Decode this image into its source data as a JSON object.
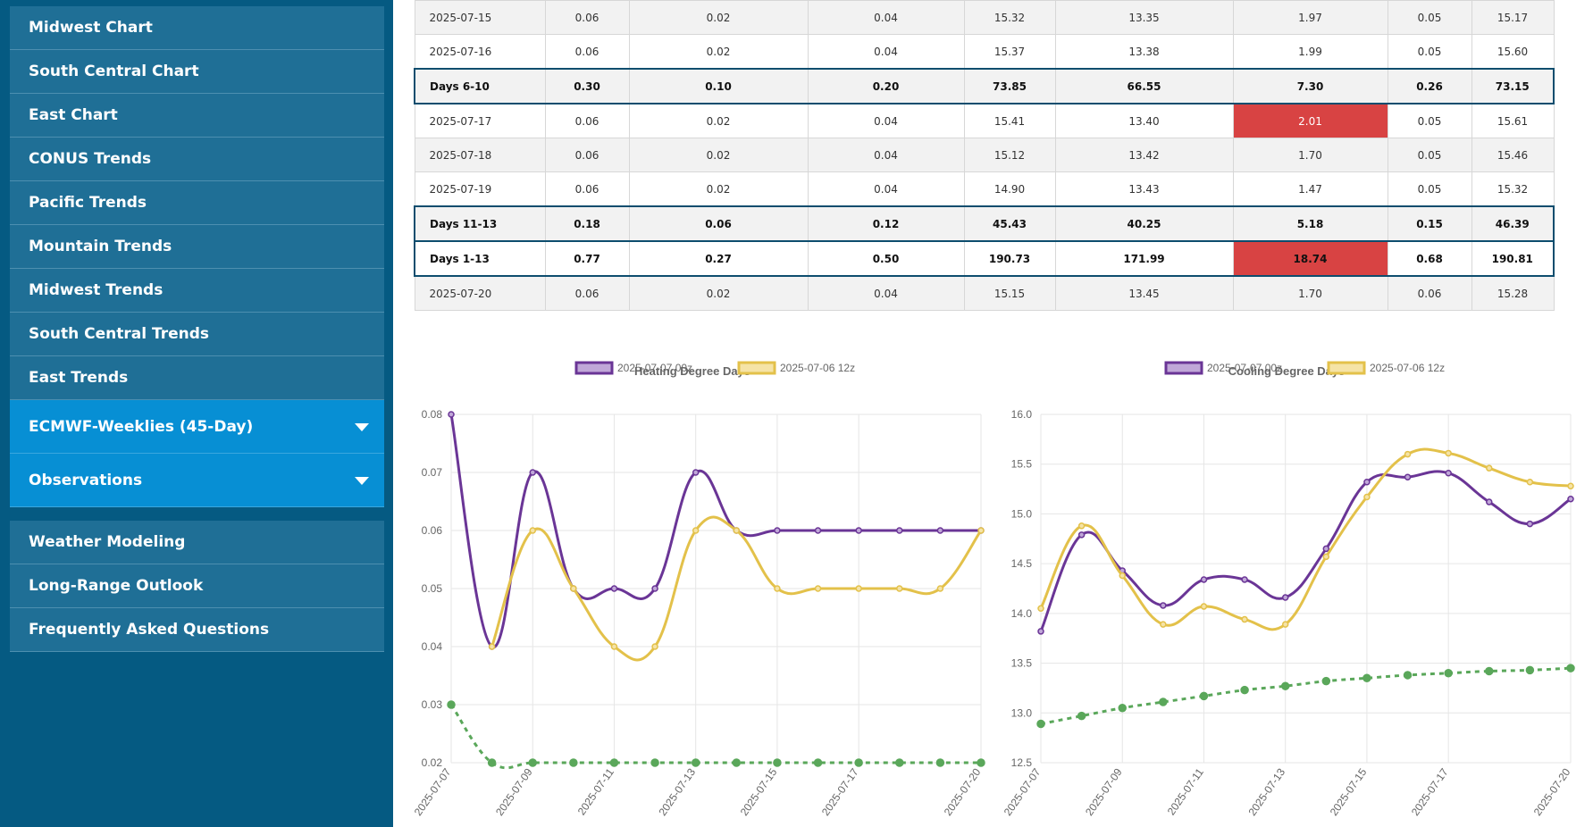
{
  "sidebar": {
    "group1": [
      {
        "label": "Midwest Chart"
      },
      {
        "label": "South Central Chart"
      },
      {
        "label": "East Chart"
      },
      {
        "label": "CONUS Trends"
      },
      {
        "label": "Pacific Trends"
      },
      {
        "label": "Mountain Trends"
      },
      {
        "label": "Midwest Trends"
      },
      {
        "label": "South Central Trends"
      },
      {
        "label": "East Trends"
      },
      {
        "label": "ECMWF-Weeklies (45-Day)"
      },
      {
        "label": "Observations"
      }
    ],
    "group2": [
      {
        "label": "Weather Modeling"
      },
      {
        "label": "Long-Range Outlook"
      },
      {
        "label": "Frequently Asked Questions"
      }
    ]
  },
  "table": {
    "rows": [
      {
        "kind": "day",
        "cells": [
          "2025-07-15",
          "0.06",
          "0.02",
          "0.04",
          "15.32",
          "13.35",
          "1.97",
          "0.05",
          "15.17"
        ]
      },
      {
        "kind": "day",
        "cells": [
          "2025-07-16",
          "0.06",
          "0.02",
          "0.04",
          "15.37",
          "13.38",
          "1.99",
          "0.05",
          "15.60"
        ]
      },
      {
        "kind": "sum",
        "cells": [
          "Days 6-10",
          "0.30",
          "0.10",
          "0.20",
          "73.85",
          "66.55",
          "7.30",
          "0.26",
          "73.15"
        ]
      },
      {
        "kind": "day",
        "cells": [
          "2025-07-17",
          "0.06",
          "0.02",
          "0.04",
          "15.41",
          "13.40",
          "2.01",
          "0.05",
          "15.61"
        ]
      },
      {
        "kind": "day",
        "cells": [
          "2025-07-18",
          "0.06",
          "0.02",
          "0.04",
          "15.12",
          "13.42",
          "1.70",
          "0.05",
          "15.46"
        ]
      },
      {
        "kind": "day",
        "cells": [
          "2025-07-19",
          "0.06",
          "0.02",
          "0.04",
          "14.90",
          "13.43",
          "1.47",
          "0.05",
          "15.32"
        ]
      },
      {
        "kind": "sum",
        "cells": [
          "Days 11-13",
          "0.18",
          "0.06",
          "0.12",
          "45.43",
          "40.25",
          "5.18",
          "0.15",
          "46.39"
        ]
      },
      {
        "kind": "sum",
        "cells": [
          "Days 1-13",
          "0.77",
          "0.27",
          "0.50",
          "190.73",
          "171.99",
          "18.74",
          "0.68",
          "190.81"
        ]
      },
      {
        "kind": "day",
        "cells": [
          "2025-07-20",
          "0.06",
          "0.02",
          "0.04",
          "15.15",
          "13.45",
          "1.70",
          "0.06",
          "15.28"
        ]
      }
    ],
    "highlight_color": "#d84343"
  },
  "chart_data": [
    {
      "type": "line",
      "title": "Heating Degree Days",
      "x": [
        "2025-07-07",
        "2025-07-08",
        "2025-07-09",
        "2025-07-10",
        "2025-07-11",
        "2025-07-12",
        "2025-07-13",
        "2025-07-14",
        "2025-07-15",
        "2025-07-16",
        "2025-07-17",
        "2025-07-18",
        "2025-07-19",
        "2025-07-20"
      ],
      "x_tick_labels": [
        "2025-07-07",
        "2025-07-09",
        "2025-07-11",
        "2025-07-13",
        "2025-07-15",
        "2025-07-17",
        "2025-07-20"
      ],
      "ylim": [
        0.02,
        0.08
      ],
      "y_ticks": [
        "0.08",
        "0.07",
        "0.06",
        "0.05",
        "0.04",
        "0.03",
        "0.02"
      ],
      "grid": true,
      "legend_position": "top",
      "series": [
        {
          "name": "2025-07-07 00z",
          "color": "#6a3596",
          "fill": "#c0a7d8",
          "style": "solid",
          "values": [
            0.08,
            0.04,
            0.07,
            0.05,
            0.05,
            0.05,
            0.07,
            0.06,
            0.06,
            0.06,
            0.06,
            0.06,
            0.06,
            0.06
          ]
        },
        {
          "name": "2025-07-06 12z",
          "color": "#e3c14a",
          "fill": "#f5e3a6",
          "style": "solid",
          "values": [
            null,
            0.04,
            0.06,
            0.05,
            0.04,
            0.04,
            0.06,
            0.06,
            0.05,
            0.05,
            0.05,
            0.05,
            0.05,
            0.06
          ]
        },
        {
          "color": "#5aa75a",
          "style": "dashed",
          "values": [
            0.03,
            0.02,
            0.02,
            0.02,
            0.02,
            0.02,
            0.02,
            0.02,
            0.02,
            0.02,
            0.02,
            0.02,
            0.02,
            0.02
          ]
        }
      ]
    },
    {
      "type": "line",
      "title": "Cooling Degree Days",
      "x": [
        "2025-07-07",
        "2025-07-08",
        "2025-07-09",
        "2025-07-10",
        "2025-07-11",
        "2025-07-12",
        "2025-07-13",
        "2025-07-14",
        "2025-07-15",
        "2025-07-16",
        "2025-07-17",
        "2025-07-18",
        "2025-07-19",
        "2025-07-20"
      ],
      "x_tick_labels": [
        "2025-07-07",
        "2025-07-09",
        "2025-07-11",
        "2025-07-13",
        "2025-07-15",
        "2025-07-17",
        "2025-07-20"
      ],
      "ylim": [
        12.5,
        16.0
      ],
      "y_ticks": [
        "16.0",
        "15.5",
        "15.0",
        "14.5",
        "14.0",
        "13.5",
        "13.0",
        "12.5"
      ],
      "grid": true,
      "legend_position": "top",
      "series": [
        {
          "name": "2025-07-07 00z",
          "color": "#6a3596",
          "fill": "#c0a7d8",
          "style": "solid",
          "values": [
            13.82,
            14.79,
            14.43,
            14.08,
            14.34,
            14.34,
            14.16,
            14.65,
            15.32,
            15.37,
            15.41,
            15.12,
            14.9,
            15.15
          ]
        },
        {
          "name": "2025-07-06 12z",
          "color": "#e3c14a",
          "fill": "#f5e3a6",
          "style": "solid",
          "values": [
            14.05,
            14.88,
            14.38,
            13.89,
            14.07,
            13.94,
            13.89,
            14.57,
            15.17,
            15.6,
            15.61,
            15.46,
            15.32,
            15.28
          ]
        },
        {
          "color": "#5aa75a",
          "style": "dashed",
          "values": [
            12.89,
            12.97,
            13.05,
            13.11,
            13.17,
            13.23,
            13.27,
            13.32,
            13.35,
            13.38,
            13.4,
            13.42,
            13.43,
            13.45
          ]
        }
      ]
    }
  ]
}
